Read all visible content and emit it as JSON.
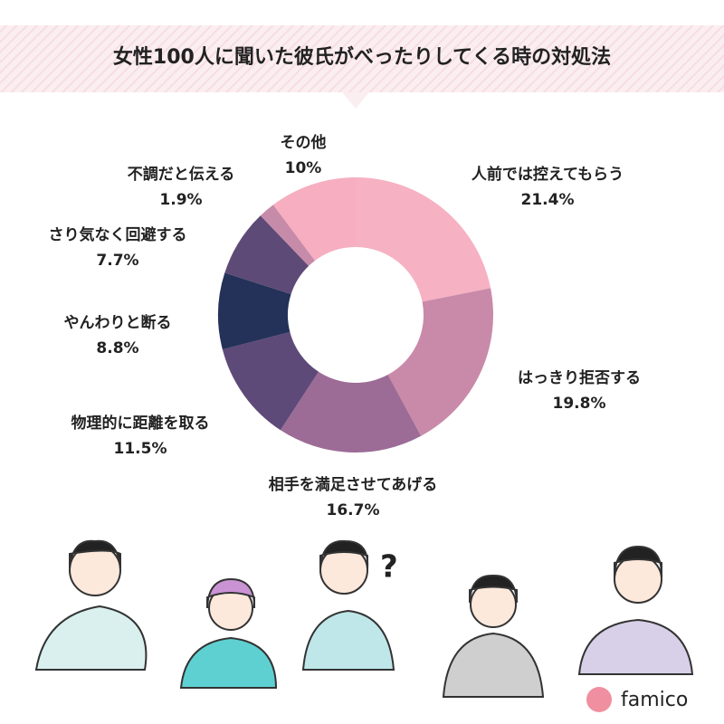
{
  "chart_data": {
    "type": "donut",
    "title": "女性100人に聞いた彼氏がべったりしてくる時の対処法",
    "categories": [
      "人前では控えてもらう",
      "はっきり拒否する",
      "相手を満足させてあげる",
      "物理的に距離を取る",
      "やんわりと断る",
      "さり気なく回避する",
      "不調だと伝える",
      "その他"
    ],
    "values": [
      21.4,
      19.8,
      16.7,
      11.5,
      8.8,
      7.7,
      1.9,
      10
    ],
    "value_labels": [
      "21.4%",
      "19.8%",
      "16.7%",
      "11.5%",
      "8.8%",
      "7.7%",
      "1.9%",
      "10%"
    ],
    "colors": [
      "#f6b1c2",
      "#c98aa9",
      "#9c6c96",
      "#5d4a78",
      "#243259",
      "#5e4a76",
      "#c68ba9",
      "#f6aec0"
    ]
  },
  "logo": "famico"
}
